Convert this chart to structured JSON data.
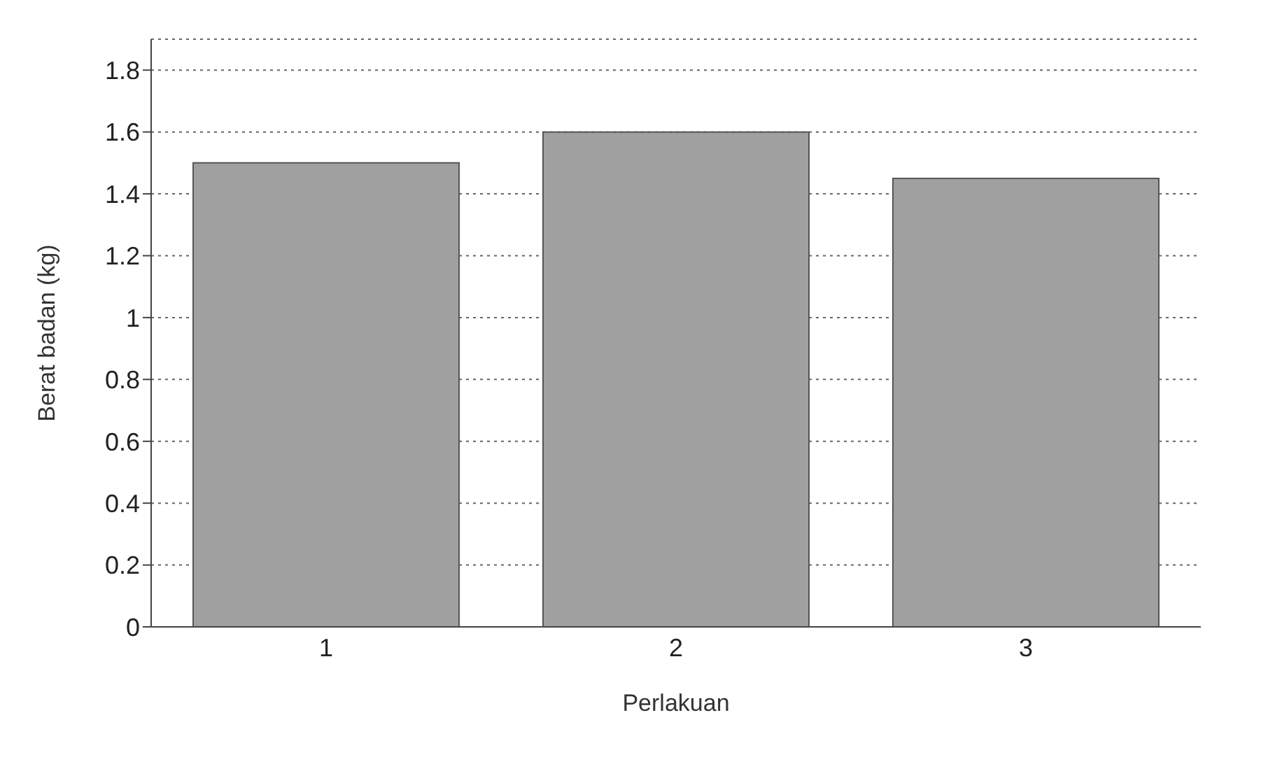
{
  "chart_data": {
    "type": "bar",
    "xlabel": "Perlakuan",
    "ylabel": "Berat badan (kg)",
    "categories": [
      "1",
      "2",
      "3"
    ],
    "values": [
      1.5,
      1.6,
      1.45
    ],
    "color": "#a0a0a0",
    "ylim": [
      0,
      1.9
    ],
    "yticks": [
      0,
      0.2,
      0.4,
      0.6,
      0.8,
      1,
      1.2,
      1.4,
      1.6,
      1.8
    ],
    "grid": "y"
  }
}
